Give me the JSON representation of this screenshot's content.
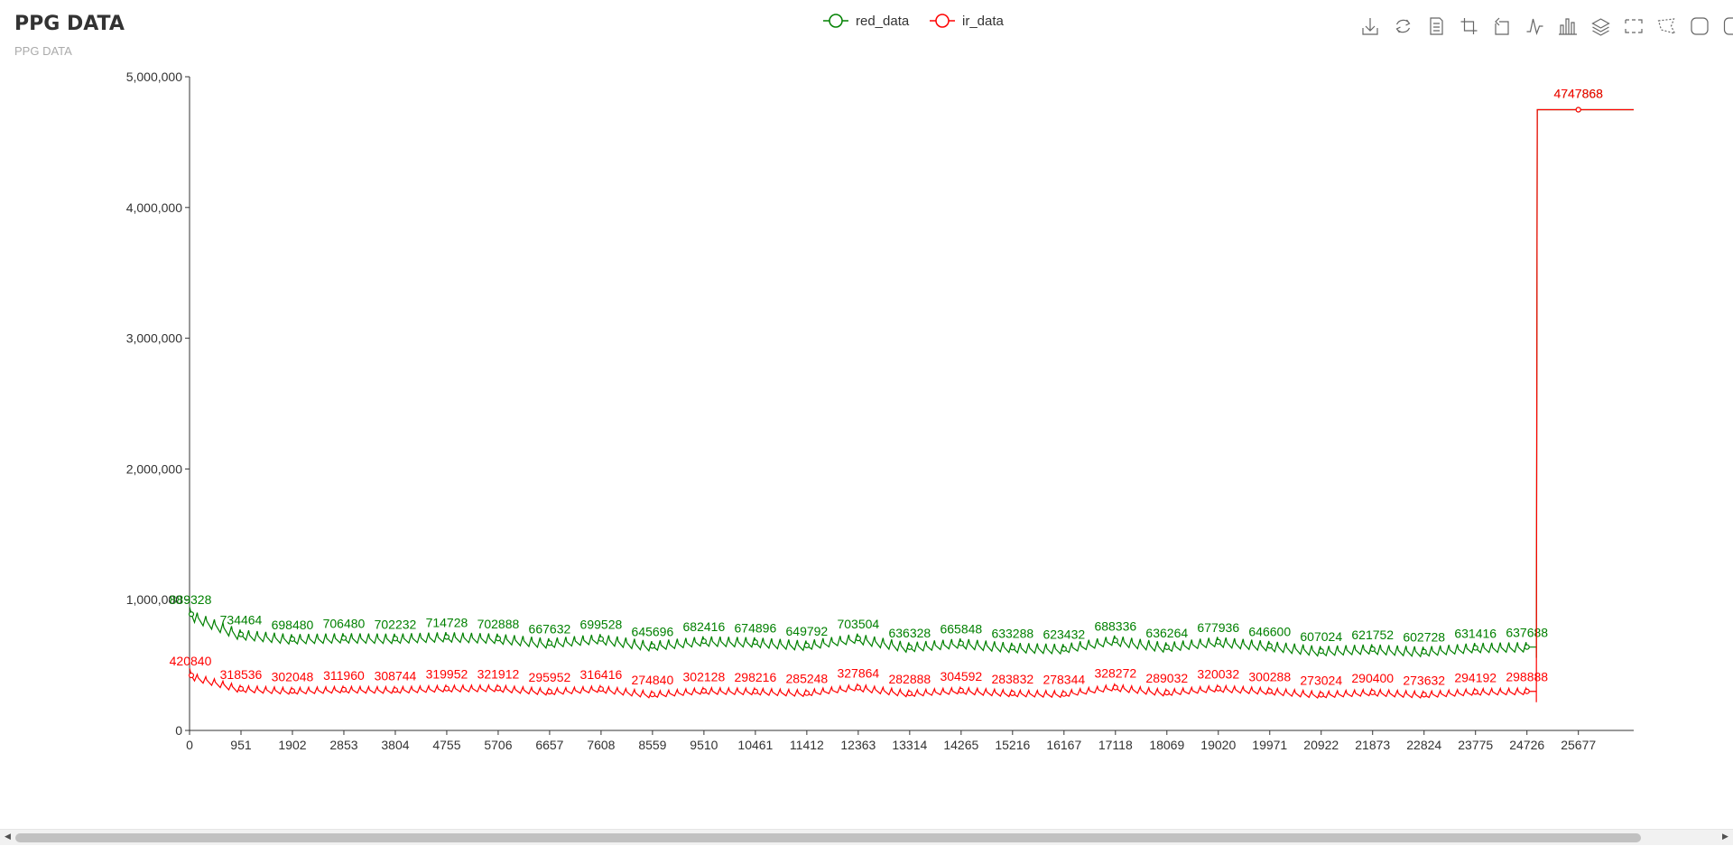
{
  "header": {
    "title": "PPG DATA",
    "subtitle": "PPG DATA"
  },
  "toolbox": {
    "icons": [
      "download-icon",
      "refresh-icon",
      "data-view-icon",
      "zoom-icon",
      "zoom-back-icon",
      "line-chart-icon",
      "bar-chart-icon",
      "stack-icon",
      "rect-select-icon",
      "polygon-select-icon",
      "keep-select-icon",
      "clear-select-icon"
    ]
  },
  "colors": {
    "red_data": "#008000",
    "ir_data": "#ff0000",
    "axis": "#333333",
    "title": "#333333",
    "subtitle": "#aaaaaa"
  },
  "chart_data": {
    "type": "line",
    "title": "PPG DATA",
    "subtitle": "PPG DATA",
    "legend": {
      "position": "top-center",
      "items": [
        "red_data",
        "ir_data"
      ]
    },
    "ylim": [
      0,
      5000000
    ],
    "yticks": [
      "0",
      "1,000,000",
      "2,000,000",
      "3,000,000",
      "4,000,000",
      "5,000,000"
    ],
    "xlim": [
      0,
      26700
    ],
    "xticks": [
      "0",
      "951",
      "1902",
      "2853",
      "3804",
      "4755",
      "5706",
      "6657",
      "7608",
      "8559",
      "9510",
      "10461",
      "11412",
      "12363",
      "13314",
      "14265",
      "15216",
      "16167",
      "17118",
      "18069",
      "19020",
      "19971",
      "20922",
      "21873",
      "22824",
      "23775",
      "24726",
      "25677"
    ],
    "step_x": 24900,
    "end_x": 26700,
    "series": [
      {
        "name": "red_data",
        "points": [
          {
            "x": 0,
            "y": 889328
          },
          {
            "x": 951,
            "y": 734464
          },
          {
            "x": 1902,
            "y": 698480
          },
          {
            "x": 2853,
            "y": 706480
          },
          {
            "x": 3804,
            "y": 702232
          },
          {
            "x": 4755,
            "y": 714728
          },
          {
            "x": 5706,
            "y": 702888
          },
          {
            "x": 6657,
            "y": 667632
          },
          {
            "x": 7608,
            "y": 699528
          },
          {
            "x": 8559,
            "y": 645696
          },
          {
            "x": 9510,
            "y": 682416
          },
          {
            "x": 10461,
            "y": 674896
          },
          {
            "x": 11412,
            "y": 649792
          },
          {
            "x": 12363,
            "y": 703504
          },
          {
            "x": 13314,
            "y": 636328
          },
          {
            "x": 14265,
            "y": 665848
          },
          {
            "x": 15216,
            "y": 633288
          },
          {
            "x": 16167,
            "y": 623432
          },
          {
            "x": 17118,
            "y": 688336
          },
          {
            "x": 18069,
            "y": 636264
          },
          {
            "x": 19020,
            "y": 677936
          },
          {
            "x": 19971,
            "y": 646600
          },
          {
            "x": 20922,
            "y": 607024
          },
          {
            "x": 21873,
            "y": 621752
          },
          {
            "x": 22824,
            "y": 602728
          },
          {
            "x": 23775,
            "y": 631416
          },
          {
            "x": 24726,
            "y": 637688
          },
          {
            "x": 25677,
            "y": 4747868
          }
        ]
      },
      {
        "name": "ir_data",
        "points": [
          {
            "x": 0,
            "y": 420840
          },
          {
            "x": 951,
            "y": 318536
          },
          {
            "x": 1902,
            "y": 302048
          },
          {
            "x": 2853,
            "y": 311960
          },
          {
            "x": 3804,
            "y": 308744
          },
          {
            "x": 4755,
            "y": 319952
          },
          {
            "x": 5706,
            "y": 321912
          },
          {
            "x": 6657,
            "y": 295952
          },
          {
            "x": 7608,
            "y": 316416
          },
          {
            "x": 8559,
            "y": 274840
          },
          {
            "x": 9510,
            "y": 302128
          },
          {
            "x": 10461,
            "y": 298216
          },
          {
            "x": 11412,
            "y": 285248
          },
          {
            "x": 12363,
            "y": 327864
          },
          {
            "x": 13314,
            "y": 282888
          },
          {
            "x": 14265,
            "y": 304592
          },
          {
            "x": 15216,
            "y": 283832
          },
          {
            "x": 16167,
            "y": 278344
          },
          {
            "x": 17118,
            "y": 328272
          },
          {
            "x": 18069,
            "y": 289032
          },
          {
            "x": 19020,
            "y": 320032
          },
          {
            "x": 19971,
            "y": 300288
          },
          {
            "x": 20922,
            "y": 273024
          },
          {
            "x": 21873,
            "y": 290400
          },
          {
            "x": 22824,
            "y": 273632
          },
          {
            "x": 23775,
            "y": 294192
          },
          {
            "x": 24726,
            "y": 298888
          },
          {
            "x": 25677,
            "y": 4747868
          }
        ]
      }
    ],
    "grid": false
  },
  "scrollbar": {
    "left_arrow": "◀",
    "right_arrow": "▶"
  }
}
